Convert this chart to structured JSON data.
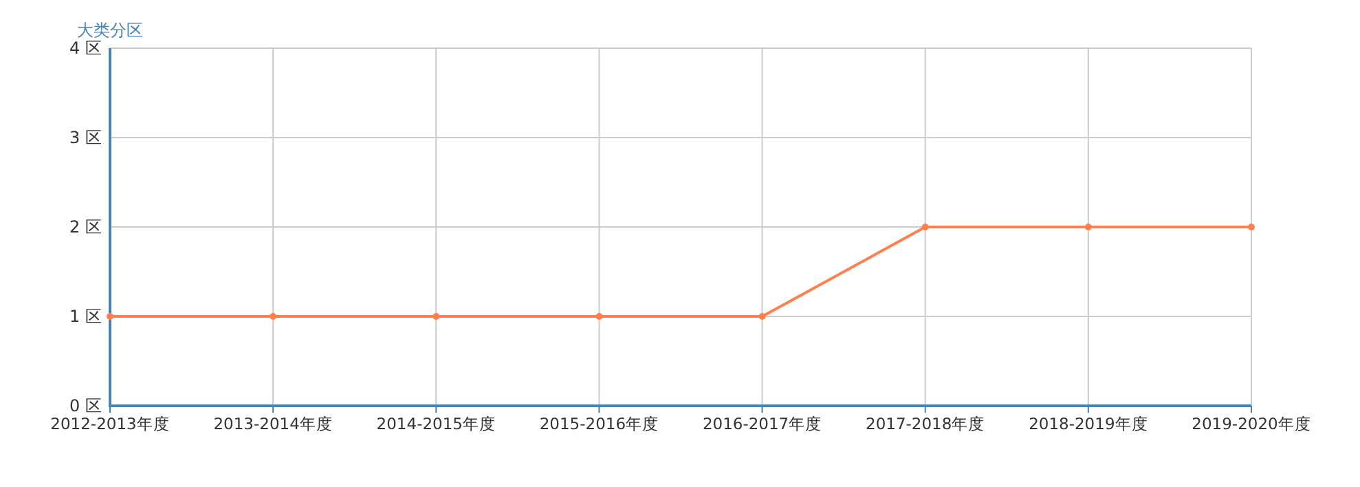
{
  "chart_data": {
    "type": "line",
    "ylabel": "大类分区",
    "categories": [
      "2012-2013年度",
      "2013-2014年度",
      "2014-2015年度",
      "2015-2016年度",
      "2016-2017年度",
      "2017-2018年度",
      "2018-2019年度",
      "2019-2020年度"
    ],
    "series": [
      {
        "color": "#ff7f50",
        "values": [
          1,
          1,
          1,
          1,
          1,
          2,
          2,
          2
        ]
      }
    ],
    "ylim": [
      0,
      4
    ],
    "yticks": [
      {
        "value": 0,
        "label": "0 区"
      },
      {
        "value": 1,
        "label": "1 区"
      },
      {
        "value": 2,
        "label": "2 区"
      },
      {
        "value": 3,
        "label": "3 区"
      },
      {
        "value": 4,
        "label": "4 区"
      }
    ],
    "grid": true,
    "marker": "circle",
    "line_style": "solid"
  }
}
